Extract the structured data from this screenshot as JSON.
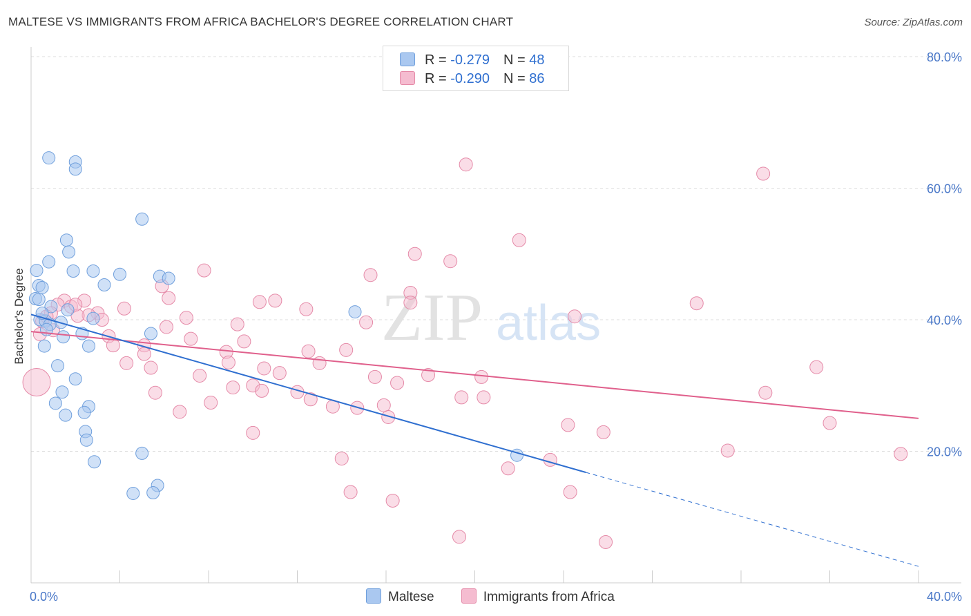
{
  "title": "MALTESE VS IMMIGRANTS FROM AFRICA BACHELOR'S DEGREE CORRELATION CHART",
  "source": "Source: ZipAtlas.com",
  "legend": {
    "rows": [
      {
        "r_label": "R = ",
        "r_value": "-0.279",
        "n_label": "N = ",
        "n_value": "48"
      },
      {
        "r_label": "R = ",
        "r_value": "-0.290",
        "n_label": "N = ",
        "n_value": "86"
      }
    ]
  },
  "bottom_legend": [
    "Maltese",
    "Immigrants from Africa"
  ],
  "watermark": {
    "zip": "ZIP",
    "atlas": "atlas"
  },
  "colors": {
    "maltese_fill": "#aac8f0",
    "maltese_stroke": "#6f9fdc",
    "maltese_line": "#2f6fd0",
    "africa_fill": "#f5bcd0",
    "africa_stroke": "#e58aa8",
    "africa_line": "#e0608c",
    "grid": "#dddddd",
    "tick_text": "#4a78c8"
  },
  "chart_data": {
    "type": "scatter",
    "xlabel": "",
    "ylabel": "Bachelor's Degree",
    "xlim": [
      0,
      40
    ],
    "ylim": [
      0,
      80
    ],
    "x_tick_labels": [
      "0.0%",
      "40.0%"
    ],
    "y_tick_labels": [
      "20.0%",
      "40.0%",
      "60.0%",
      "80.0%"
    ],
    "y_tick_values": [
      20,
      40,
      60,
      80
    ],
    "grid": true,
    "legend_position": "top-center",
    "series": [
      {
        "name": "Maltese",
        "r": -0.279,
        "n": 48,
        "trend": {
          "x": [
            0.0,
            25.0
          ],
          "y": [
            40.8,
            16.8
          ]
        },
        "trend_dashed": {
          "x": [
            25.0,
            40.0
          ],
          "y": [
            16.8,
            2.5
          ]
        },
        "points": [
          [
            0.8,
            64.6
          ],
          [
            2.0,
            64.0
          ],
          [
            2.0,
            62.9
          ],
          [
            5.0,
            55.3
          ],
          [
            1.6,
            52.1
          ],
          [
            1.7,
            50.3
          ],
          [
            0.8,
            48.8
          ],
          [
            0.25,
            47.5
          ],
          [
            1.9,
            47.4
          ],
          [
            2.8,
            47.4
          ],
          [
            4.0,
            46.9
          ],
          [
            5.8,
            46.6
          ],
          [
            6.2,
            46.3
          ],
          [
            3.3,
            45.3
          ],
          [
            0.35,
            45.2
          ],
          [
            0.5,
            44.9
          ],
          [
            0.2,
            43.2
          ],
          [
            0.35,
            43.1
          ],
          [
            0.9,
            42.0
          ],
          [
            1.65,
            41.5
          ],
          [
            14.6,
            41.2
          ],
          [
            2.8,
            40.2
          ],
          [
            0.4,
            40.0
          ],
          [
            0.65,
            39.8
          ],
          [
            1.35,
            39.6
          ],
          [
            0.85,
            39.3
          ],
          [
            0.7,
            38.5
          ],
          [
            5.4,
            37.9
          ],
          [
            1.45,
            37.4
          ],
          [
            2.3,
            37.9
          ],
          [
            0.6,
            36.0
          ],
          [
            2.6,
            36.0
          ],
          [
            1.2,
            33.0
          ],
          [
            2.0,
            31.0
          ],
          [
            1.4,
            29.0
          ],
          [
            1.1,
            27.3
          ],
          [
            2.6,
            26.8
          ],
          [
            2.4,
            25.9
          ],
          [
            1.55,
            25.5
          ],
          [
            2.45,
            23.0
          ],
          [
            2.5,
            21.7
          ],
          [
            5.0,
            19.7
          ],
          [
            2.85,
            18.4
          ],
          [
            21.9,
            19.4
          ],
          [
            5.7,
            14.8
          ],
          [
            4.6,
            13.6
          ],
          [
            5.5,
            13.7
          ],
          [
            0.5,
            41.0
          ]
        ]
      },
      {
        "name": "Immigrants from Africa",
        "r": -0.29,
        "n": 86,
        "trend": {
          "x": [
            0.0,
            40.0
          ],
          "y": [
            38.2,
            25.0
          ]
        },
        "points": [
          [
            19.6,
            63.6
          ],
          [
            33.0,
            62.2
          ],
          [
            22.0,
            52.1
          ],
          [
            17.3,
            50.0
          ],
          [
            18.9,
            48.9
          ],
          [
            7.8,
            47.5
          ],
          [
            15.3,
            46.8
          ],
          [
            5.9,
            45.1
          ],
          [
            17.1,
            44.1
          ],
          [
            6.2,
            43.3
          ],
          [
            1.5,
            42.9
          ],
          [
            11.0,
            42.9
          ],
          [
            10.3,
            42.7
          ],
          [
            2.4,
            42.9
          ],
          [
            1.2,
            42.3
          ],
          [
            1.8,
            42.0
          ],
          [
            17.1,
            42.6
          ],
          [
            30.0,
            42.5
          ],
          [
            4.2,
            41.7
          ],
          [
            12.4,
            41.6
          ],
          [
            3.0,
            41.0
          ],
          [
            0.9,
            41.0
          ],
          [
            2.6,
            40.7
          ],
          [
            2.1,
            40.6
          ],
          [
            24.5,
            40.5
          ],
          [
            7.0,
            40.3
          ],
          [
            3.2,
            40.0
          ],
          [
            0.5,
            39.8
          ],
          [
            15.1,
            39.6
          ],
          [
            9.3,
            39.3
          ],
          [
            6.1,
            38.9
          ],
          [
            1.0,
            38.4
          ],
          [
            3.5,
            37.5
          ],
          [
            7.2,
            37.1
          ],
          [
            9.6,
            36.7
          ],
          [
            3.7,
            36.1
          ],
          [
            5.1,
            36.1
          ],
          [
            12.5,
            35.2
          ],
          [
            14.2,
            35.4
          ],
          [
            5.1,
            34.8
          ],
          [
            8.8,
            35.1
          ],
          [
            4.3,
            33.4
          ],
          [
            8.9,
            33.5
          ],
          [
            13.0,
            33.4
          ],
          [
            10.5,
            32.6
          ],
          [
            35.4,
            32.8
          ],
          [
            5.4,
            32.7
          ],
          [
            11.2,
            31.9
          ],
          [
            7.6,
            31.5
          ],
          [
            17.9,
            31.6
          ],
          [
            15.5,
            31.3
          ],
          [
            20.3,
            31.3
          ],
          [
            16.5,
            30.4
          ],
          [
            10.0,
            30.0
          ],
          [
            9.1,
            29.7
          ],
          [
            5.6,
            28.9
          ],
          [
            10.4,
            29.2
          ],
          [
            12.0,
            29.0
          ],
          [
            33.1,
            28.9
          ],
          [
            19.4,
            28.2
          ],
          [
            20.4,
            28.2
          ],
          [
            12.6,
            27.9
          ],
          [
            8.1,
            27.4
          ],
          [
            15.9,
            27.0
          ],
          [
            13.6,
            26.8
          ],
          [
            14.7,
            26.6
          ],
          [
            6.7,
            26.0
          ],
          [
            16.1,
            25.2
          ],
          [
            24.2,
            24.0
          ],
          [
            36.0,
            24.3
          ],
          [
            10.0,
            22.8
          ],
          [
            25.8,
            22.9
          ],
          [
            31.4,
            20.1
          ],
          [
            39.2,
            19.6
          ],
          [
            14.0,
            18.9
          ],
          [
            23.4,
            18.7
          ],
          [
            21.5,
            17.4
          ],
          [
            14.4,
            13.8
          ],
          [
            24.3,
            13.8
          ],
          [
            16.3,
            12.5
          ],
          [
            19.3,
            7.0
          ],
          [
            25.9,
            6.2
          ],
          [
            0.25,
            30.5
          ],
          [
            0.4,
            37.8
          ],
          [
            0.7,
            40.5
          ],
          [
            2.0,
            42.3
          ]
        ]
      }
    ]
  }
}
